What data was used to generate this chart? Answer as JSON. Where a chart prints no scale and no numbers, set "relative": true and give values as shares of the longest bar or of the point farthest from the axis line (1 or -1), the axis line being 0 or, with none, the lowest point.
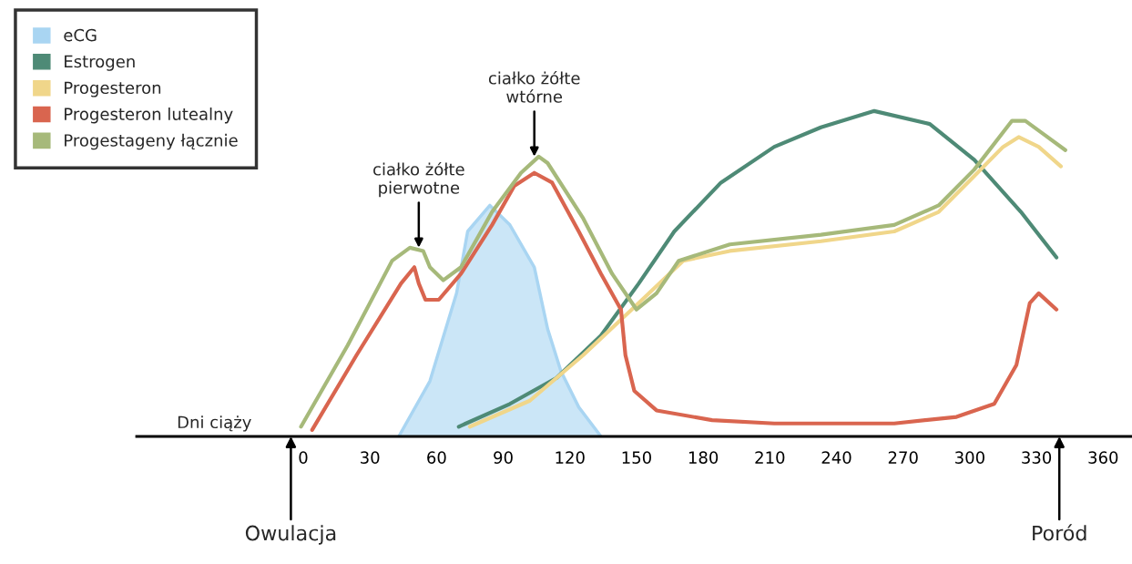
{
  "chart_data": {
    "type": "line",
    "relative": true,
    "xlabel": "Dni ciąży",
    "xlim": [
      -75,
      373
    ],
    "xticks": [
      0,
      30,
      60,
      90,
      120,
      150,
      180,
      210,
      240,
      270,
      300,
      330,
      360
    ],
    "legend": "top left",
    "grid": false,
    "tick_labels": "x",
    "series": [
      {
        "name": "eCG",
        "type": "area",
        "color": "#a9d5f2",
        "x": [
          43,
          57,
          69,
          74,
          84,
          93,
          104,
          110,
          116,
          124,
          134
        ],
        "values": [
          0,
          0.17,
          0.44,
          0.63,
          0.71,
          0.65,
          0.52,
          0.33,
          0.2,
          0.09,
          0
        ]
      },
      {
        "name": "Estrogen",
        "color": "#4e8a76",
        "x": [
          70,
          93,
          114,
          134,
          151,
          167,
          188,
          212,
          233,
          257,
          282,
          302,
          323,
          339
        ],
        "values": [
          0.03,
          0.1,
          0.18,
          0.31,
          0.47,
          0.63,
          0.78,
          0.89,
          0.95,
          1.0,
          0.96,
          0.85,
          0.69,
          0.55
        ]
      },
      {
        "name": "Progesteron",
        "color": "#f0d68a",
        "x": [
          75,
          102,
          126,
          151,
          171,
          192,
          233,
          266,
          286,
          302,
          315,
          322,
          331,
          341
        ],
        "values": [
          0.03,
          0.11,
          0.25,
          0.41,
          0.54,
          0.57,
          0.6,
          0.63,
          0.69,
          0.8,
          0.89,
          0.92,
          0.89,
          0.83
        ]
      },
      {
        "name": "Progesteron lutealny",
        "color": "#d9654f",
        "x": [
          4,
          24,
          44,
          50,
          52,
          55,
          61,
          71,
          85,
          95,
          104,
          112,
          124,
          134,
          143,
          145,
          149,
          159,
          184,
          212,
          266,
          294,
          311,
          321,
          327,
          331,
          339
        ],
        "values": [
          0.02,
          0.25,
          0.47,
          0.52,
          0.47,
          0.42,
          0.42,
          0.5,
          0.65,
          0.77,
          0.81,
          0.78,
          0.63,
          0.5,
          0.39,
          0.25,
          0.14,
          0.08,
          0.05,
          0.04,
          0.04,
          0.06,
          0.1,
          0.22,
          0.41,
          0.44,
          0.39
        ]
      },
      {
        "name": "Progestageny łącznie",
        "color": "#a6b97a",
        "x": [
          -1,
          20,
          40,
          48,
          54,
          57,
          63,
          71,
          85,
          98,
          106,
          110,
          126,
          139,
          150,
          159,
          169,
          192,
          233,
          266,
          286,
          302,
          319,
          325,
          333,
          343
        ],
        "values": [
          0.03,
          0.28,
          0.54,
          0.58,
          0.57,
          0.52,
          0.48,
          0.52,
          0.69,
          0.81,
          0.86,
          0.84,
          0.67,
          0.5,
          0.39,
          0.44,
          0.54,
          0.59,
          0.62,
          0.65,
          0.71,
          0.82,
          0.97,
          0.97,
          0.93,
          0.88
        ]
      }
    ],
    "annotations": [
      {
        "text": "ciałko żółte\npierwotne",
        "x": 52,
        "y": 0.58
      },
      {
        "text": "ciałko żółte\nwtórne",
        "x": 104,
        "y": 0.86
      },
      "Owulacja",
      "Poród"
    ]
  }
}
